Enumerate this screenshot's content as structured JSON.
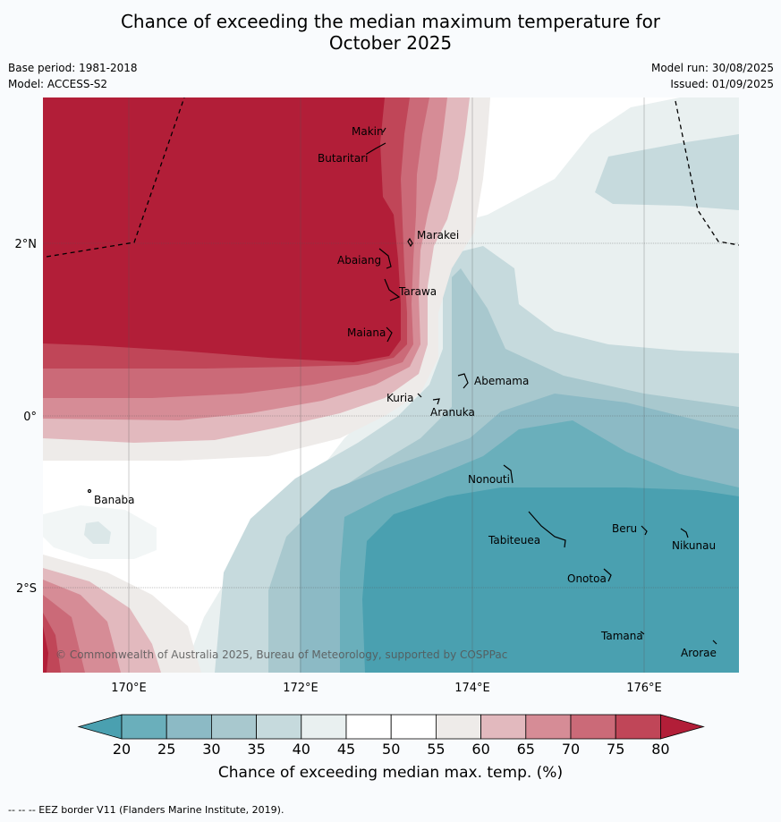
{
  "header": {
    "title_line1": "Chance of exceeding the median maximum temperature for",
    "title_line2": "October 2025",
    "base_period": "Base period: 1981-2018",
    "model": "Model: ACCESS-S2",
    "model_run": "Model run: 30/08/2025",
    "issued": "Issued: 01/09/2025"
  },
  "map": {
    "lat_labels": [
      "2°N",
      "0°",
      "2°S"
    ],
    "lon_labels": [
      "170°E",
      "172°E",
      "174°E",
      "176°E"
    ],
    "copyright": "© Commonwealth of Australia 2025, Bureau of Meteorology, supported by COSPPac",
    "places": [
      "Makin",
      "Butaritari",
      "Marakei",
      "Abaiang",
      "Tarawa",
      "Maiana",
      "Abemama",
      "Kuria",
      "Aranuka",
      "Banaba",
      "Nonouti",
      "Beru",
      "Tabiteuea",
      "Nikunau",
      "Onotoa",
      "Tamana",
      "Arorae"
    ]
  },
  "colorbar": {
    "ticks": [
      "20",
      "25",
      "30",
      "35",
      "40",
      "45",
      "50",
      "55",
      "60",
      "65",
      "70",
      "75",
      "80"
    ],
    "title": "Chance of exceeding median max. temp. (%)",
    "colors": [
      "#4aa0b0",
      "#6aafbb",
      "#8cbac5",
      "#a8c8ce",
      "#c6dadd",
      "#e9f0f0",
      "#ffffff",
      "#ffffff",
      "#eeebe9",
      "#e2b9be",
      "#d68c96",
      "#cb6a78",
      "#c04658",
      "#b21e38"
    ]
  },
  "footer": {
    "eez_note": "--  --  -- EEZ border V11 (Flanders Marine Institute, 2019)."
  }
}
